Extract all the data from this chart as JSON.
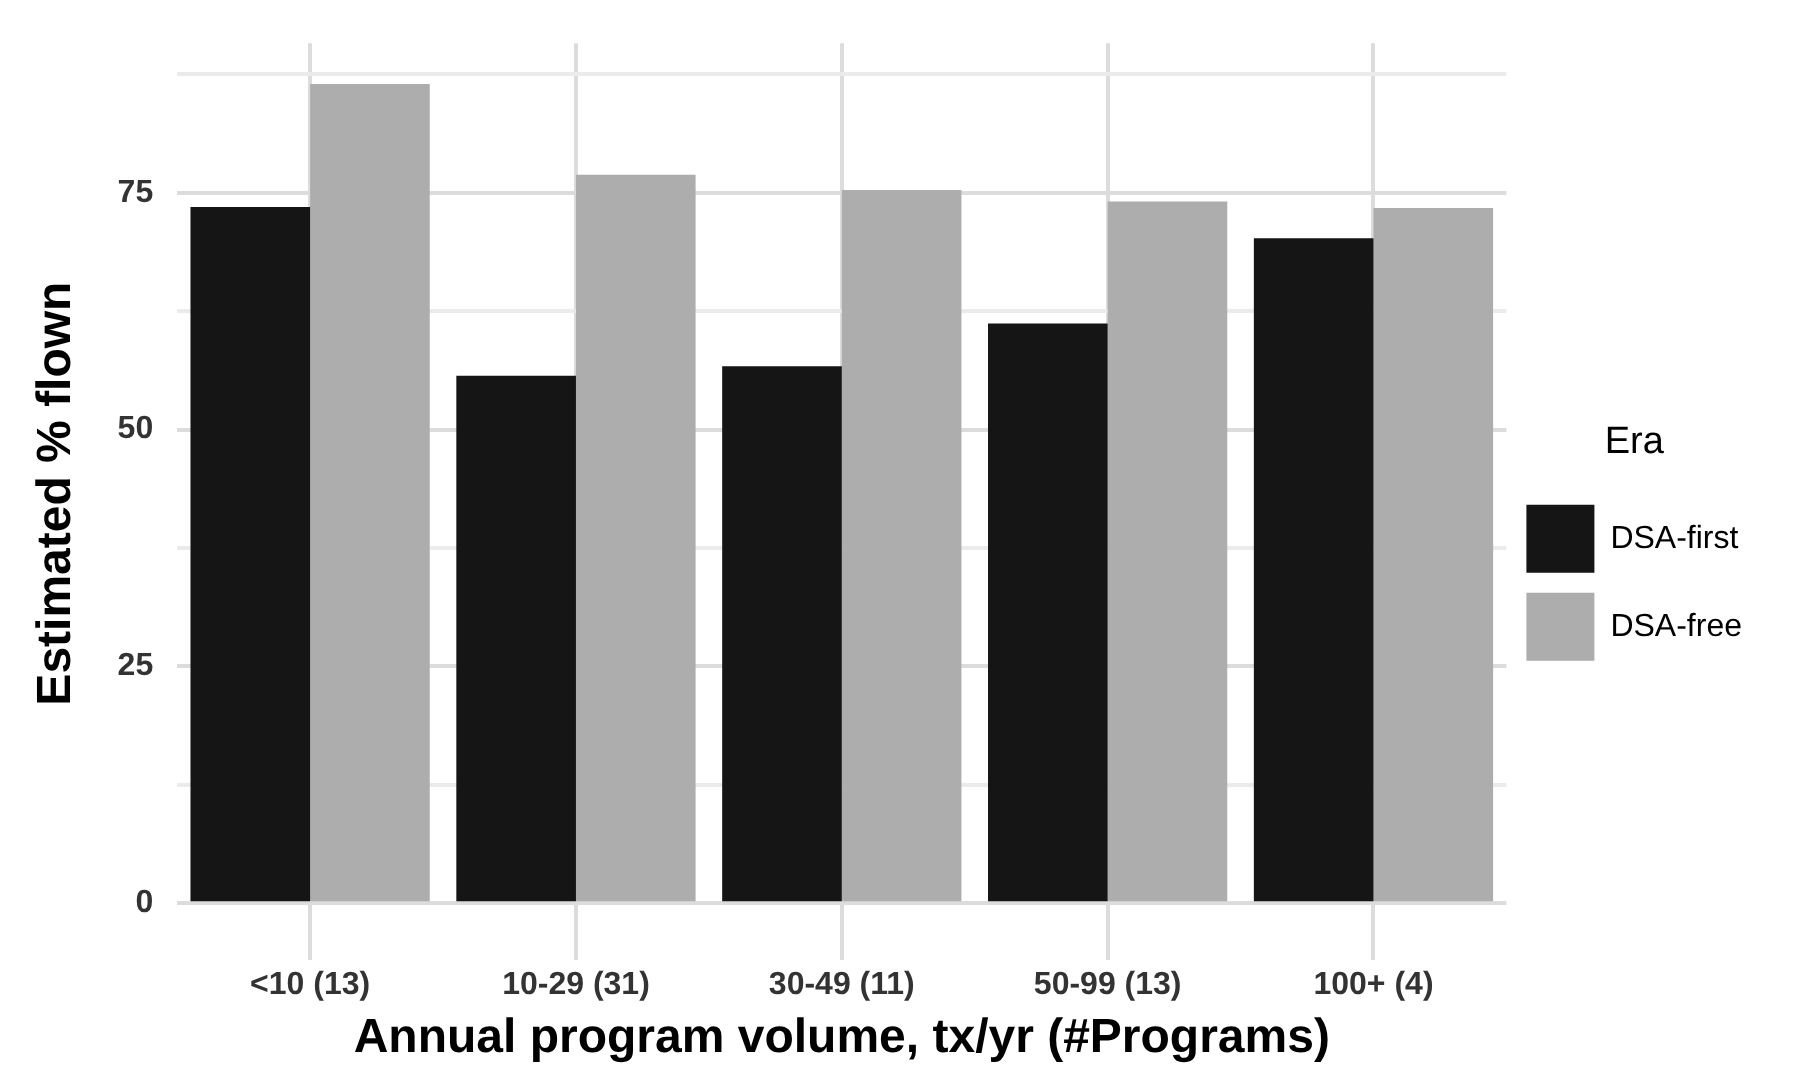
{
  "chart_data": {
    "type": "bar",
    "xlabel": "Annual program volume, tx/yr (#Programs)",
    "ylabel": "Estimated % flown",
    "legend_title": "Era",
    "categories": [
      "<10 (13)",
      "10-29 (31)",
      "30-49 (11)",
      "50-99 (13)",
      "100+ (4)"
    ],
    "series": [
      {
        "name": "DSA-first",
        "color": "#151515",
        "values": [
          73.5,
          55.7,
          56.7,
          61.2,
          70.2
        ]
      },
      {
        "name": "DSA-free",
        "color": "#adadad",
        "values": [
          86.5,
          76.9,
          75.3,
          74.1,
          73.4
        ]
      }
    ],
    "ylim": [
      -4.3,
      90.8
    ],
    "yticks": [
      0,
      {
        "value": 12.5,
        "label": null
      },
      25,
      {
        "value": 37.5,
        "label": null
      },
      50,
      {
        "value": 62.5,
        "label": null
      },
      75,
      {
        "value": 87.5,
        "label": null
      }
    ],
    "grid": true,
    "legend": "right"
  }
}
